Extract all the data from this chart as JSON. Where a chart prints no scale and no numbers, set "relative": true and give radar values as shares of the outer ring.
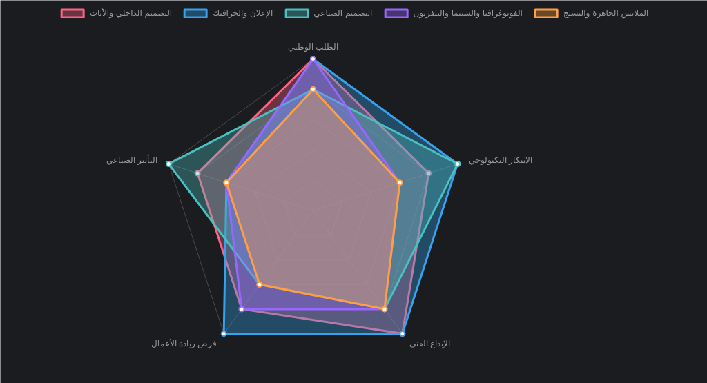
{
  "chart_data": {
    "type": "radar",
    "relative": true,
    "grid": true,
    "legend": "top",
    "marker": "circle",
    "categories": [
      "الطلب الوطني",
      "الابتكار التكنولوجي",
      "الإبداع الفني",
      "فرص ريادة الأعمال",
      "التأثير الصناعي"
    ],
    "series": [
      {
        "name": "التصميم الداخلي والأثاث",
        "color": "#ff6384",
        "values": [
          1,
          0.8,
          1,
          0.8,
          0.8
        ]
      },
      {
        "name": "الإعلان والجرافيك",
        "color": "#36a2eb",
        "values": [
          1,
          1,
          1,
          1,
          0.6
        ]
      },
      {
        "name": "التصميم الصناعي",
        "color": "#4bc0c0",
        "values": [
          0.8,
          1,
          0.8,
          0.6,
          1
        ]
      },
      {
        "name": "الفوتوغرافيا والسينما والتلفزيون",
        "color": "#9966ff",
        "values": [
          1,
          0.6,
          0.8,
          0.8,
          0.6
        ]
      },
      {
        "name": "الملابس الجاهزة والنسيج",
        "color": "#ff9f40",
        "values": [
          0.8,
          0.6,
          0.8,
          0.6,
          0.6
        ]
      }
    ]
  }
}
